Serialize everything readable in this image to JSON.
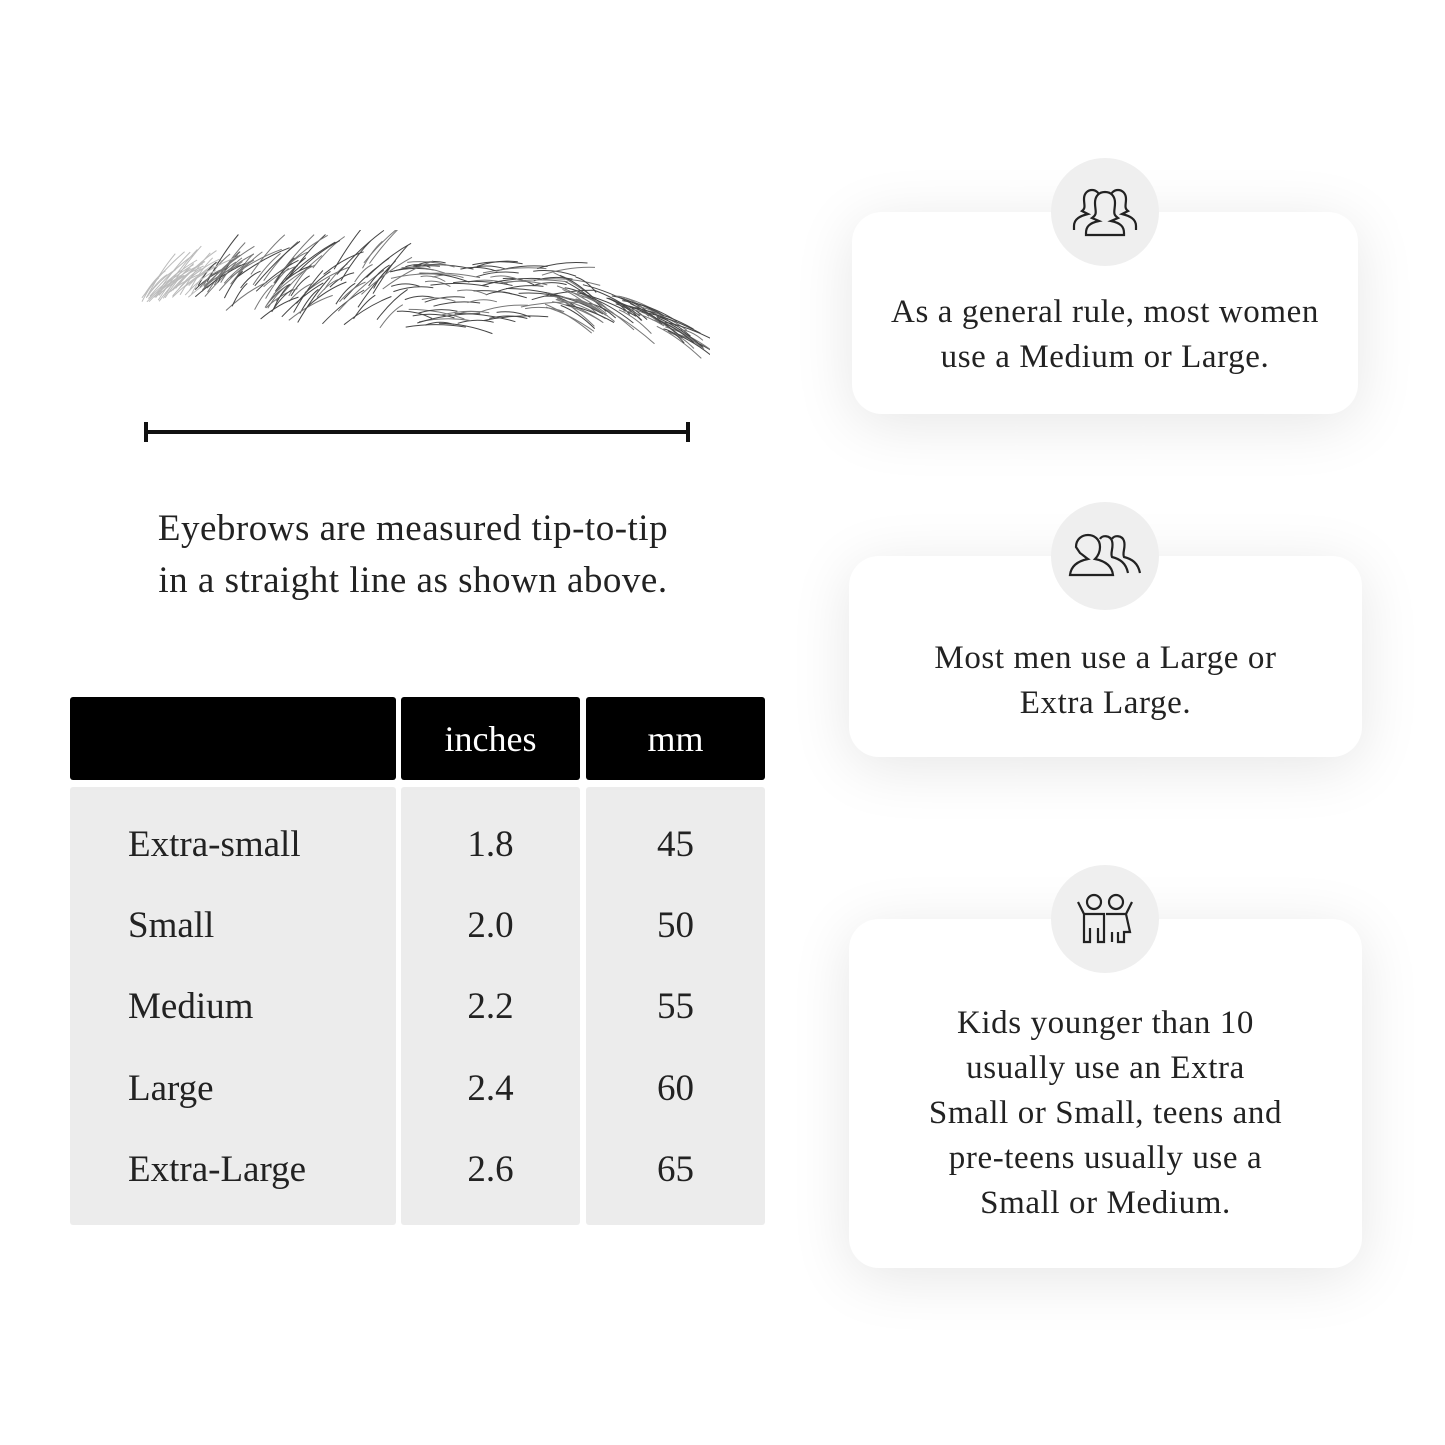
{
  "caption": {
    "lines": [
      "Eyebrows are measured tip-to-tip",
      "in a straight line as shown above."
    ]
  },
  "size_table": {
    "columns": [
      "",
      "inches",
      "mm"
    ],
    "rows": [
      {
        "size": "Extra-small",
        "inches": "1.8",
        "mm": "45"
      },
      {
        "size": "Small",
        "inches": "2.0",
        "mm": "50"
      },
      {
        "size": "Medium",
        "inches": "2.2",
        "mm": "55"
      },
      {
        "size": "Large",
        "inches": "2.4",
        "mm": "60"
      },
      {
        "size": "Extra-Large",
        "inches": "2.6",
        "mm": "65"
      }
    ],
    "header_color": "#000000",
    "body_color": "#ececec"
  },
  "cards": [
    {
      "icon": "women-group-icon",
      "lines": [
        "As a general rule, most women",
        "use a Medium or Large."
      ]
    },
    {
      "icon": "men-group-icon",
      "lines": [
        "Most men use a Large or",
        "Extra Large."
      ]
    },
    {
      "icon": "kids-icon",
      "lines": [
        "Kids younger than 10",
        "usually use an Extra",
        "Small or Small, teens and",
        "pre-teens usually use a",
        "Small or Medium."
      ]
    }
  ]
}
